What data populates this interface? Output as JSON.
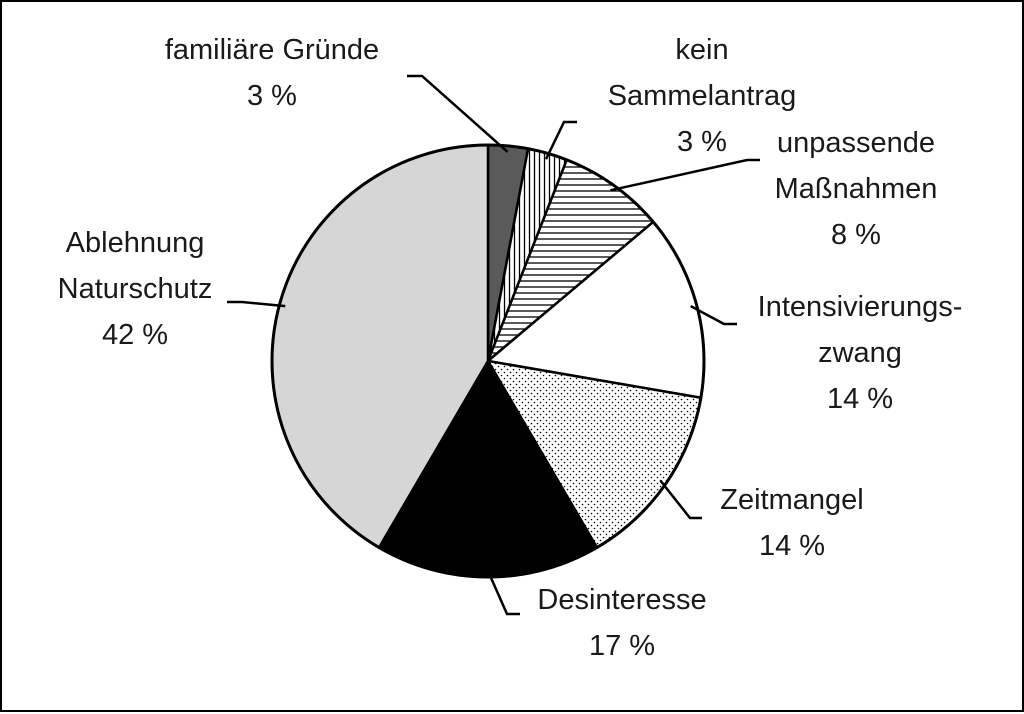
{
  "chart_data": {
    "type": "pie",
    "title": "",
    "slices": [
      {
        "lines": [
          "familiäre Gründe"
        ],
        "value_label": "3 %",
        "value": 3,
        "fill": "#5a5a5a",
        "pattern": "solid"
      },
      {
        "lines": [
          "kein",
          "Sammelantrag"
        ],
        "value_label": "3 %",
        "value": 3,
        "fill": "#ffffff",
        "pattern": "vertical-lines"
      },
      {
        "lines": [
          "unpassende",
          "Maßnahmen"
        ],
        "value_label": "8 %",
        "value": 8,
        "fill": "#ffffff",
        "pattern": "horizontal-lines"
      },
      {
        "lines": [
          "Intensivierungs-",
          "zwang"
        ],
        "value_label": "14 %",
        "value": 14,
        "fill": "#ffffff",
        "pattern": "solid"
      },
      {
        "lines": [
          "Zeitmangel"
        ],
        "value_label": "14 %",
        "value": 14,
        "fill": "#ffffff",
        "pattern": "dots"
      },
      {
        "lines": [
          "Desinteresse"
        ],
        "value_label": "17 %",
        "value": 17,
        "fill": "#000000",
        "pattern": "solid"
      },
      {
        "lines": [
          "Ablehnung",
          "Naturschutz"
        ],
        "value_label": "42 %",
        "value": 42,
        "fill": "#d6d6d6",
        "pattern": "solid"
      }
    ]
  }
}
